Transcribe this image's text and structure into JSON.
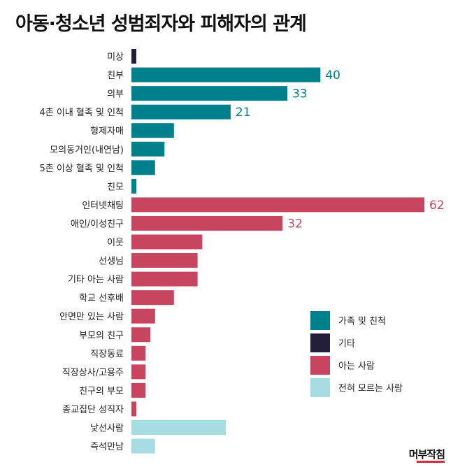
{
  "title": "아동·청소년 성범죄자와 피해자의 관계",
  "logo": "머부작침",
  "colors": {
    "family": "#00808a",
    "other": "#231f3a",
    "acquaintance": "#c8455f",
    "stranger": "#a6dde3"
  },
  "chart_data": {
    "type": "bar",
    "orientation": "horizontal",
    "categories": [
      "미상",
      "친부",
      "의부",
      "4촌 이내 혈족 및 인척",
      "형제자매",
      "모의동거인(내연남)",
      "5촌 이상 혈족 및 인척",
      "친모",
      "인터넷채팅",
      "애인/이성친구",
      "이웃",
      "선생님",
      "기타 아는 사람",
      "학교 선후배",
      "안면만 있는 사람",
      "부모의 친구",
      "직장동료",
      "직장상사/고용주",
      "친구의 부모",
      "종교집단 성직자",
      "낯선사람",
      "즉석만남"
    ],
    "values": [
      1,
      40,
      33,
      21,
      9,
      7,
      5,
      1,
      62,
      32,
      15,
      14,
      14,
      9,
      5,
      4,
      3,
      3,
      3,
      1,
      20,
      5
    ],
    "groups": [
      "other",
      "family",
      "family",
      "family",
      "family",
      "family",
      "family",
      "family",
      "acquaintance",
      "acquaintance",
      "acquaintance",
      "acquaintance",
      "acquaintance",
      "acquaintance",
      "acquaintance",
      "acquaintance",
      "acquaintance",
      "acquaintance",
      "acquaintance",
      "acquaintance",
      "stranger",
      "stranger"
    ],
    "data_labels": [
      "",
      "40",
      "33",
      "21",
      "",
      "",
      "",
      "",
      "62",
      "32",
      "",
      "",
      "",
      "",
      "",
      "",
      "",
      "",
      "",
      "",
      "",
      ""
    ],
    "xlim": [
      0,
      62
    ],
    "legend": {
      "position": "lower-right",
      "entries": [
        {
          "key": "family",
          "label": "가족 및 친척"
        },
        {
          "key": "other",
          "label": "기타"
        },
        {
          "key": "acquaintance",
          "label": "아는 사람"
        },
        {
          "key": "stranger",
          "label": "전혀 모르는 사람"
        }
      ]
    }
  }
}
